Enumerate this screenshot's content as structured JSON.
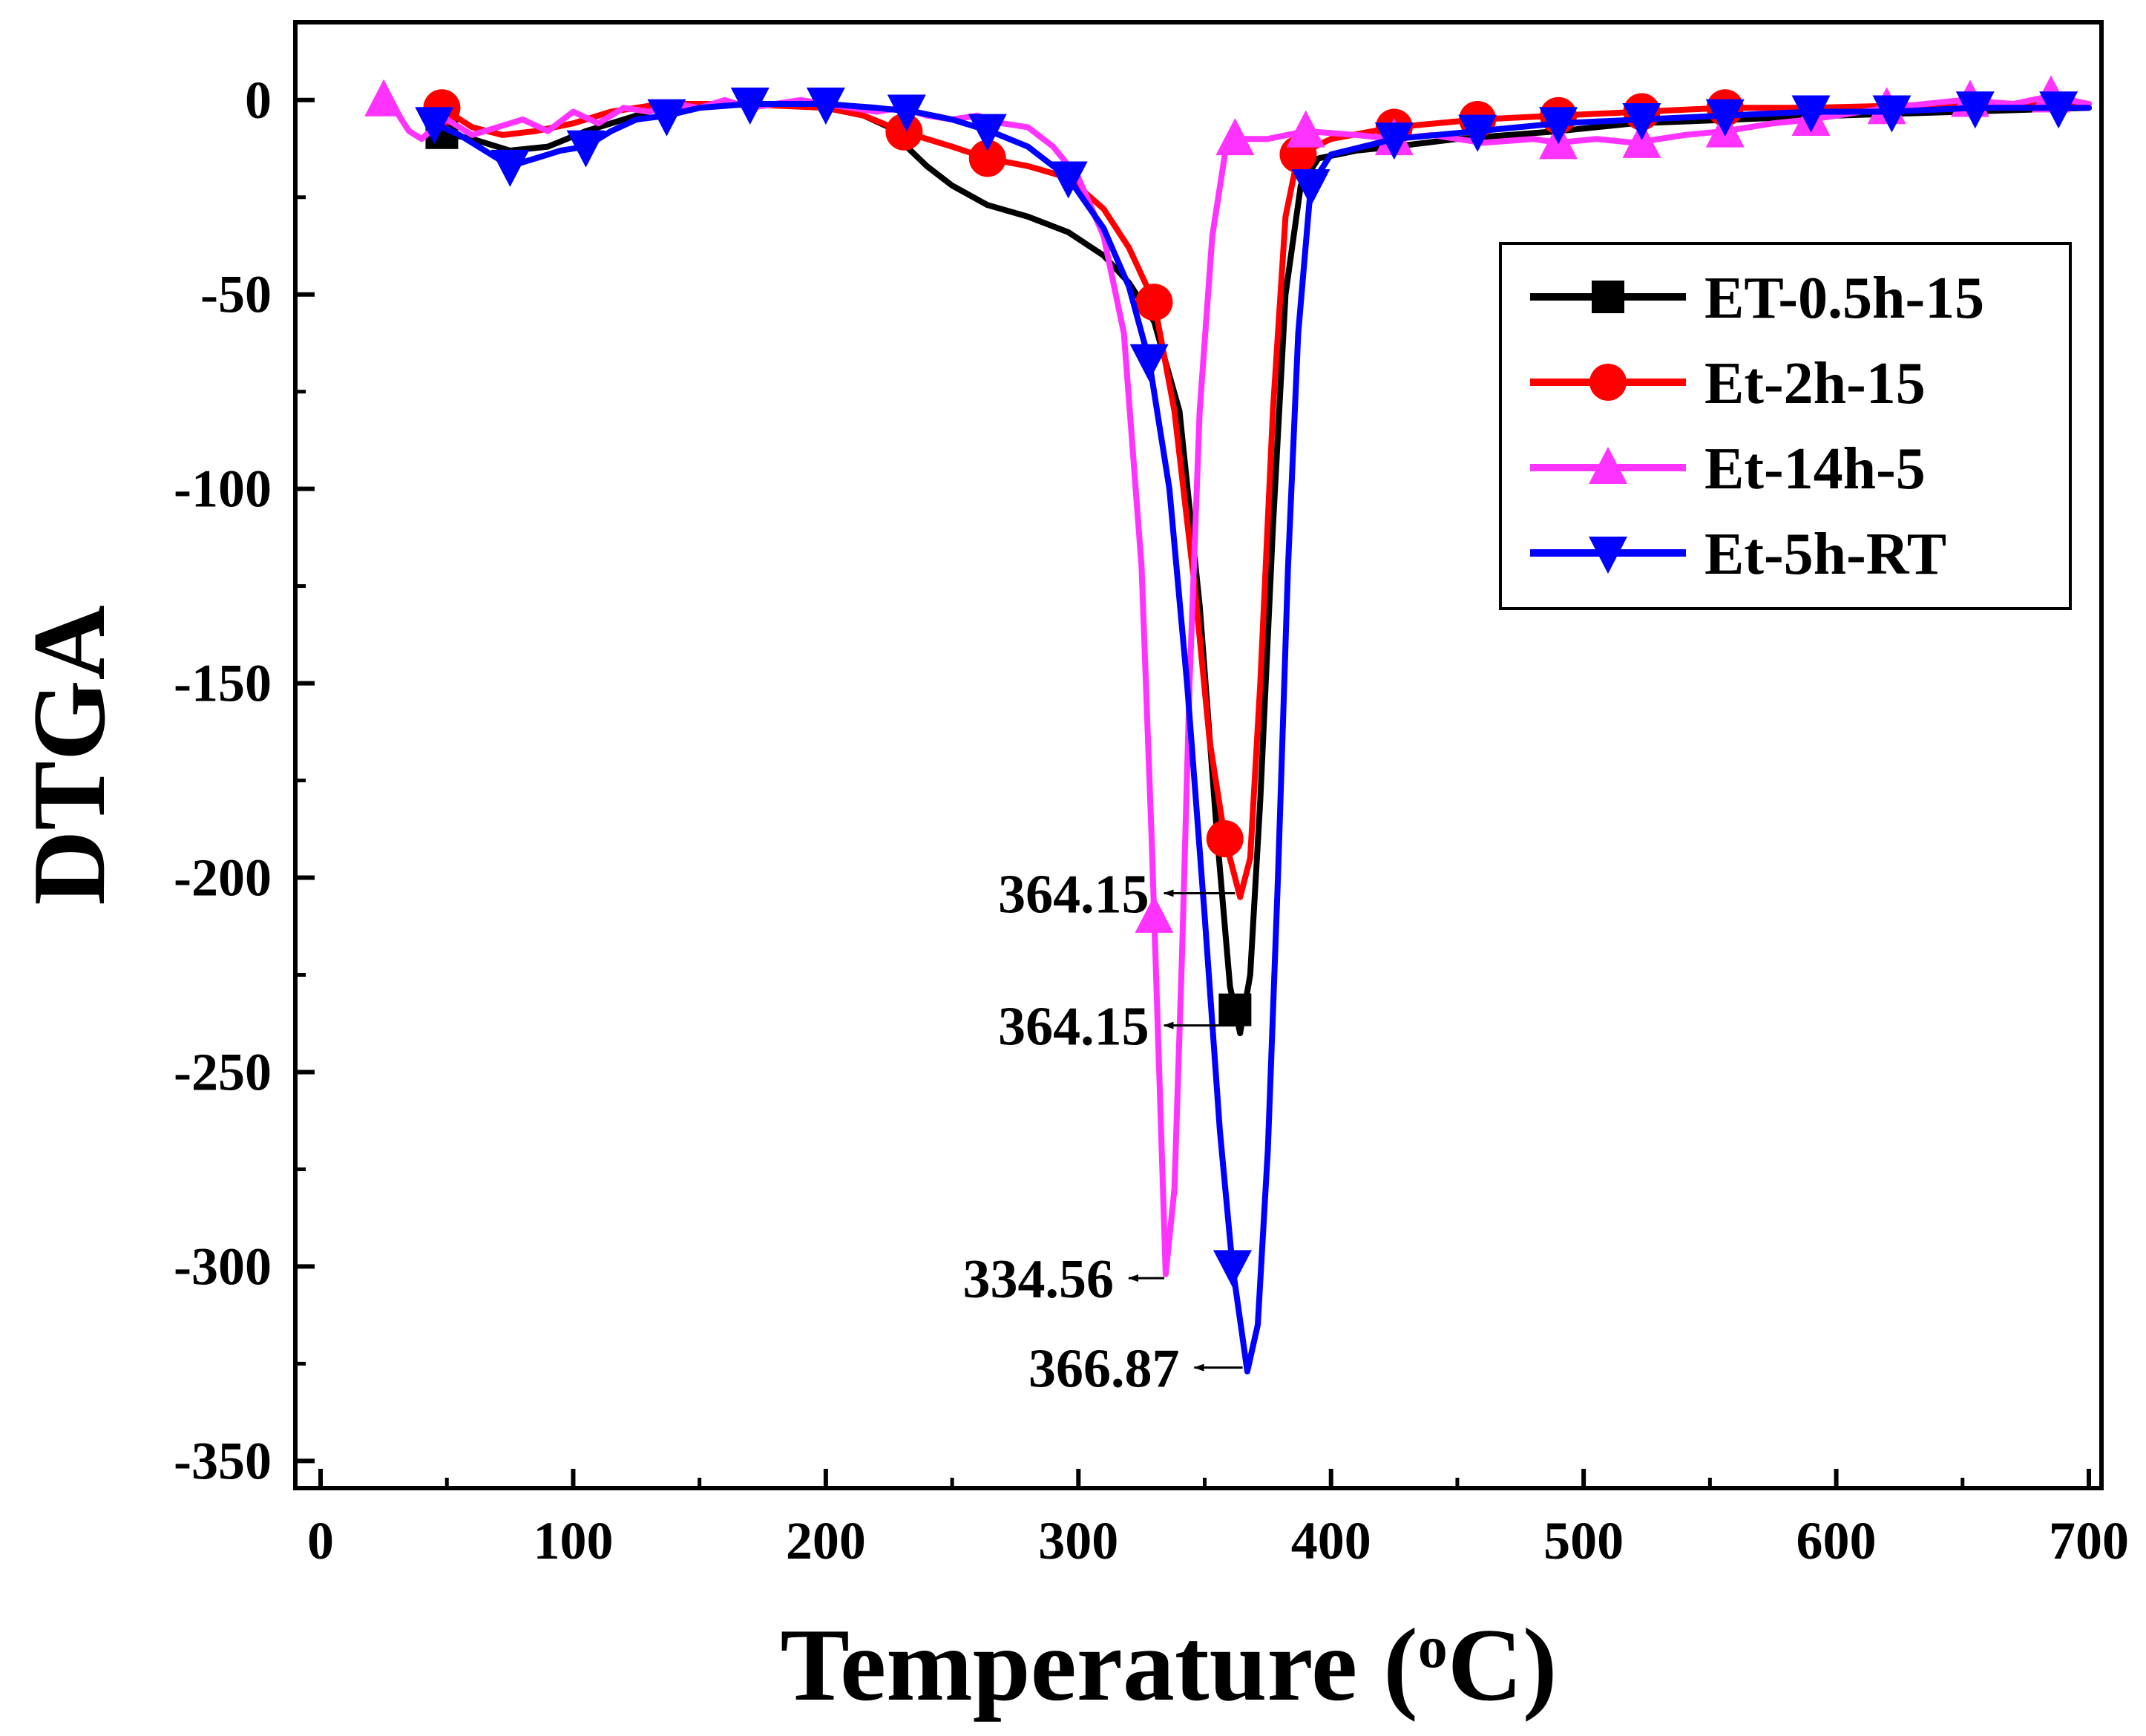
{
  "chart_data": {
    "type": "line",
    "title": "",
    "xlabel": "Temperature (",
    "xlabel_sup": "o",
    "xlabel_tail": "C)",
    "ylabel": "DTGA",
    "xlim": [
      -10,
      705
    ],
    "ylim": [
      -357,
      20
    ],
    "xticks": [
      0,
      100,
      200,
      300,
      400,
      500,
      600,
      700
    ],
    "xtick_labels": [
      "0",
      "100",
      "200",
      "300",
      "400",
      "500",
      "600",
      "700"
    ],
    "yticks": [
      0,
      -50,
      -100,
      -150,
      -200,
      -250,
      -300,
      -350
    ],
    "ytick_labels": [
      "0",
      "-50",
      "-100",
      "-150",
      "-200",
      "-250",
      "-300",
      "-350"
    ],
    "legend_position": "top-right",
    "series": [
      {
        "name": "ET-0.5h-15",
        "color": "#000000",
        "marker": "square",
        "points": [
          [
            45,
            -8
          ],
          [
            60,
            -10
          ],
          [
            75,
            -13
          ],
          [
            90,
            -12
          ],
          [
            105,
            -8
          ],
          [
            120,
            -5
          ],
          [
            135,
            -2
          ],
          [
            150,
            -1
          ],
          [
            165,
            -1
          ],
          [
            180,
            -1
          ],
          [
            200,
            -2
          ],
          [
            215,
            -4
          ],
          [
            225,
            -7
          ],
          [
            232,
            -12
          ],
          [
            240,
            -17
          ],
          [
            250,
            -22
          ],
          [
            264,
            -27
          ],
          [
            280,
            -30
          ],
          [
            296,
            -34
          ],
          [
            310,
            -40
          ],
          [
            320,
            -47
          ],
          [
            330,
            -57
          ],
          [
            340,
            -80
          ],
          [
            348,
            -130
          ],
          [
            355,
            -190
          ],
          [
            360,
            -228
          ],
          [
            364,
            -240
          ],
          [
            368,
            -225
          ],
          [
            372,
            -180
          ],
          [
            377,
            -110
          ],
          [
            382,
            -50
          ],
          [
            388,
            -22
          ],
          [
            395,
            -15
          ],
          [
            410,
            -13
          ],
          [
            425,
            -12
          ],
          [
            450,
            -10
          ],
          [
            490,
            -8
          ],
          [
            520,
            -6
          ],
          [
            560,
            -5
          ],
          [
            600,
            -4
          ],
          [
            650,
            -3
          ],
          [
            700,
            -2
          ]
        ],
        "markers_x": [
          48,
          362
        ]
      },
      {
        "name": "Et-2h-15",
        "color": "#ff0000",
        "marker": "circle",
        "points": [
          [
            48,
            -2
          ],
          [
            60,
            -7
          ],
          [
            72,
            -9
          ],
          [
            85,
            -8
          ],
          [
            100,
            -6
          ],
          [
            115,
            -3
          ],
          [
            135,
            -1
          ],
          [
            165,
            -1
          ],
          [
            200,
            -2
          ],
          [
            215,
            -4
          ],
          [
            230,
            -8
          ],
          [
            250,
            -12
          ],
          [
            264,
            -15
          ],
          [
            280,
            -17
          ],
          [
            296,
            -20
          ],
          [
            310,
            -28
          ],
          [
            320,
            -38
          ],
          [
            330,
            -52
          ],
          [
            338,
            -80
          ],
          [
            346,
            -125
          ],
          [
            352,
            -165
          ],
          [
            358,
            -190
          ],
          [
            364,
            -205
          ],
          [
            368,
            -195
          ],
          [
            372,
            -150
          ],
          [
            377,
            -80
          ],
          [
            382,
            -30
          ],
          [
            387,
            -14
          ],
          [
            400,
            -10
          ],
          [
            425,
            -7
          ],
          [
            458,
            -5
          ],
          [
            490,
            -4
          ],
          [
            523,
            -3
          ],
          [
            556,
            -2
          ],
          [
            590,
            -2
          ],
          [
            650,
            -1
          ],
          [
            700,
            -1
          ]
        ],
        "markers_x": [
          48,
          231,
          264,
          330,
          358,
          387,
          425,
          458,
          490,
          523,
          556
        ]
      },
      {
        "name": "Et-14h-5",
        "color": "#ff33ff",
        "marker": "triangle-up",
        "points": [
          [
            25,
            0
          ],
          [
            30,
            -3
          ],
          [
            35,
            -8
          ],
          [
            40,
            -10
          ],
          [
            45,
            -7
          ],
          [
            50,
            -5
          ],
          [
            60,
            -9
          ],
          [
            70,
            -7
          ],
          [
            80,
            -5
          ],
          [
            90,
            -8
          ],
          [
            100,
            -3
          ],
          [
            110,
            -6
          ],
          [
            120,
            -2
          ],
          [
            130,
            -3
          ],
          [
            140,
            -1
          ],
          [
            150,
            -2
          ],
          [
            160,
            0
          ],
          [
            170,
            -2
          ],
          [
            180,
            -1
          ],
          [
            190,
            0
          ],
          [
            200,
            -1
          ],
          [
            210,
            -2
          ],
          [
            220,
            -3
          ],
          [
            230,
            -2
          ],
          [
            240,
            -4
          ],
          [
            250,
            -5
          ],
          [
            260,
            -4
          ],
          [
            270,
            -6
          ],
          [
            280,
            -7
          ],
          [
            290,
            -12
          ],
          [
            300,
            -20
          ],
          [
            310,
            -35
          ],
          [
            318,
            -60
          ],
          [
            325,
            -120
          ],
          [
            329,
            -190
          ],
          [
            332,
            -250
          ],
          [
            334.56,
            -302
          ],
          [
            338,
            -280
          ],
          [
            341,
            -220
          ],
          [
            344,
            -150
          ],
          [
            348,
            -80
          ],
          [
            353,
            -35
          ],
          [
            358,
            -14
          ],
          [
            362,
            -10
          ],
          [
            375,
            -10
          ],
          [
            390,
            -8
          ],
          [
            410,
            -9
          ],
          [
            425,
            -10
          ],
          [
            440,
            -9
          ],
          [
            460,
            -11
          ],
          [
            480,
            -10
          ],
          [
            490,
            -11
          ],
          [
            505,
            -10
          ],
          [
            520,
            -11
          ],
          [
            540,
            -9
          ],
          [
            556,
            -8
          ],
          [
            575,
            -6
          ],
          [
            590,
            -5
          ],
          [
            620,
            -2
          ],
          [
            650,
            0
          ],
          [
            670,
            -1
          ],
          [
            685,
            1
          ],
          [
            700,
            -1
          ]
        ],
        "markers_x": [
          25,
          330,
          362,
          390,
          425,
          490,
          523,
          556,
          590,
          620,
          653,
          685
        ]
      },
      {
        "name": "Et-5h-RT",
        "color": "#0000ff",
        "marker": "triangle-down",
        "points": [
          [
            45,
            -6
          ],
          [
            55,
            -9
          ],
          [
            65,
            -13
          ],
          [
            75,
            -17
          ],
          [
            85,
            -15
          ],
          [
            95,
            -13
          ],
          [
            105,
            -12
          ],
          [
            115,
            -8
          ],
          [
            125,
            -5
          ],
          [
            137,
            -4
          ],
          [
            150,
            -2
          ],
          [
            170,
            -1
          ],
          [
            200,
            -1
          ],
          [
            220,
            -2
          ],
          [
            235,
            -3
          ],
          [
            250,
            -5
          ],
          [
            265,
            -8
          ],
          [
            280,
            -12
          ],
          [
            296,
            -20
          ],
          [
            310,
            -33
          ],
          [
            320,
            -48
          ],
          [
            328,
            -67
          ],
          [
            336,
            -100
          ],
          [
            343,
            -150
          ],
          [
            350,
            -210
          ],
          [
            356,
            -265
          ],
          [
            361,
            -300
          ],
          [
            366.87,
            -327
          ],
          [
            371,
            -315
          ],
          [
            375,
            -270
          ],
          [
            379,
            -200
          ],
          [
            383,
            -120
          ],
          [
            387,
            -60
          ],
          [
            392,
            -22
          ],
          [
            400,
            -14
          ],
          [
            425,
            -10
          ],
          [
            458,
            -8
          ],
          [
            490,
            -6
          ],
          [
            523,
            -5
          ],
          [
            556,
            -4
          ],
          [
            590,
            -3
          ],
          [
            622,
            -3
          ],
          [
            655,
            -2
          ],
          [
            688,
            -2
          ],
          [
            700,
            -2
          ]
        ],
        "markers_x": [
          45,
          75,
          105,
          137,
          170,
          200,
          232,
          264,
          296,
          328,
          361,
          392,
          425,
          458,
          490,
          523,
          556,
          590,
          622,
          655,
          688
        ]
      }
    ],
    "annotations": [
      {
        "text": "364.15",
        "arrow_from": [
          362,
          -204
        ],
        "label_at": [
          328,
          -204
        ]
      },
      {
        "text": "364.15",
        "arrow_from": [
          362,
          -238
        ],
        "label_at": [
          328,
          -238
        ]
      },
      {
        "text": "334.56",
        "arrow_from": [
          334,
          -303
        ],
        "label_at": [
          314,
          -303
        ]
      },
      {
        "text": "366.87",
        "arrow_from": [
          365,
          -326
        ],
        "label_at": [
          340,
          -326
        ]
      }
    ]
  }
}
